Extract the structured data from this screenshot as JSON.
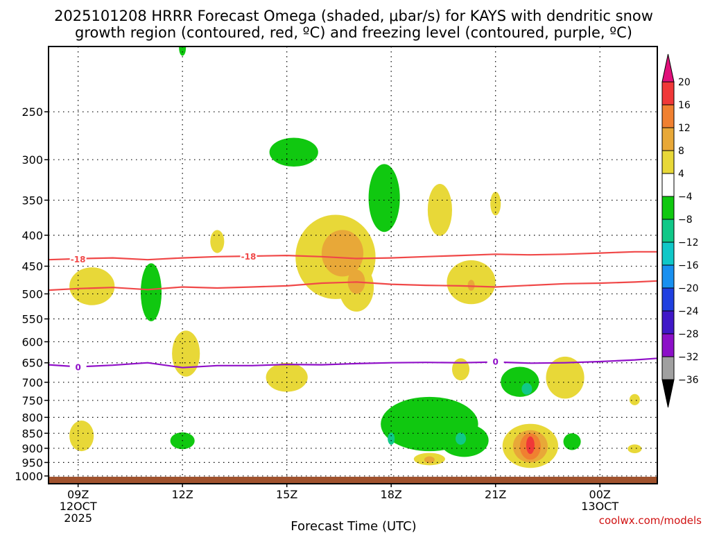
{
  "chart_data": {
    "type": "heatmap",
    "title_lines": [
      "2025101208 HRRR Forecast Omega (shaded, μbar/s) for KAYS with dendritic snow",
      "growth region (contoured, red, ºC) and freezing level (contoured, purple, ºC)"
    ],
    "xlabel": "Forecast Time (UTC)",
    "credit": "coolwx.com/models",
    "x_range_hours": [
      8.15,
      25.65
    ],
    "y_range_hpa": [
      195,
      1030
    ],
    "x_ticks": [
      {
        "hour": 9,
        "lines": [
          "09Z",
          "12OCT",
          "2025"
        ]
      },
      {
        "hour": 12,
        "lines": [
          "12Z"
        ]
      },
      {
        "hour": 15,
        "lines": [
          "15Z"
        ]
      },
      {
        "hour": 18,
        "lines": [
          "18Z"
        ]
      },
      {
        "hour": 21,
        "lines": [
          "21Z"
        ]
      },
      {
        "hour": 24,
        "lines": [
          "00Z",
          "13OCT"
        ]
      }
    ],
    "y_ticks": [
      250,
      300,
      350,
      400,
      450,
      500,
      550,
      600,
      650,
      700,
      750,
      800,
      850,
      900,
      950,
      1000
    ],
    "ground_level_hpa": 1003,
    "colorbar": {
      "labels": [
        "20",
        "16",
        "12",
        "8",
        "4",
        "−4",
        "−8",
        "−12",
        "−16",
        "−20",
        "−24",
        "−28",
        "−32",
        "−36"
      ],
      "colors": [
        "#f03838",
        "#f08030",
        "#e8a838",
        "#e8d838",
        "#ffffff",
        "#10c810",
        "#10c888",
        "#10c8c8",
        "#1890f0",
        "#2040e0",
        "#4018c8",
        "#8c10c8",
        "#a0a0a0"
      ],
      "top_color": "#e0107a",
      "bottom_color": "#000000"
    },
    "contours": [
      {
        "name": "dgz-top-18",
        "label": "-18",
        "color": "#f04848",
        "points": [
          [
            8.15,
            439
          ],
          [
            9.2,
            437
          ],
          [
            10,
            436
          ],
          [
            11,
            439
          ],
          [
            12,
            436
          ],
          [
            13,
            434
          ],
          [
            14,
            433
          ],
          [
            15,
            432
          ],
          [
            16,
            434
          ],
          [
            17,
            437
          ],
          [
            18,
            436
          ],
          [
            19,
            434
          ],
          [
            20,
            432
          ],
          [
            21,
            430
          ],
          [
            22,
            431
          ],
          [
            23,
            430
          ],
          [
            24,
            428
          ],
          [
            25,
            426
          ],
          [
            25.65,
            426
          ]
        ],
        "label_at": [
          [
            9.0,
            439
          ],
          [
            13.9,
            434
          ]
        ]
      },
      {
        "name": "dgz-bottom",
        "label": "",
        "color": "#f04848",
        "points": [
          [
            8.15,
            493
          ],
          [
            9,
            490
          ],
          [
            10,
            488
          ],
          [
            11,
            492
          ],
          [
            12,
            487
          ],
          [
            13,
            489
          ],
          [
            14,
            487
          ],
          [
            15,
            485
          ],
          [
            16,
            480
          ],
          [
            17,
            478
          ],
          [
            18,
            482
          ],
          [
            19,
            484
          ],
          [
            20,
            485
          ],
          [
            21,
            487
          ],
          [
            22,
            484
          ],
          [
            23,
            481
          ],
          [
            24,
            480
          ],
          [
            25,
            478
          ],
          [
            25.65,
            476
          ]
        ],
        "label_at": []
      },
      {
        "name": "freezing-level-0",
        "label": "0",
        "color": "#9010c8",
        "points": [
          [
            8.15,
            655
          ],
          [
            9,
            660
          ],
          [
            10,
            656
          ],
          [
            11,
            650
          ],
          [
            12,
            662
          ],
          [
            13,
            657
          ],
          [
            14,
            657
          ],
          [
            15,
            654
          ],
          [
            16,
            655
          ],
          [
            17,
            652
          ],
          [
            18,
            650
          ],
          [
            19,
            649
          ],
          [
            20,
            650
          ],
          [
            21,
            648
          ],
          [
            22,
            651
          ],
          [
            23,
            650
          ],
          [
            24,
            647
          ],
          [
            25,
            643
          ],
          [
            25.65,
            639
          ]
        ],
        "label_at": [
          [
            9.0,
            662
          ],
          [
            21.0,
            648
          ]
        ]
      }
    ],
    "omega_regions": [
      {
        "value": -6,
        "color": "#10c810",
        "center": [
          12.0,
          196
        ],
        "rx_h": 0.1,
        "ry_hpa": 6
      },
      {
        "value": -6,
        "color": "#10c810",
        "center": [
          15.2,
          292
        ],
        "rx_h": 0.7,
        "ry_hpa": 16
      },
      {
        "value": -6,
        "color": "#10c810",
        "center": [
          17.8,
          350
        ],
        "rx_h": 0.45,
        "ry_hpa": 45
      },
      {
        "value": -6,
        "color": "#10c810",
        "center": [
          11.1,
          500
        ],
        "rx_h": 0.3,
        "ry_hpa": 55
      },
      {
        "value": -6,
        "color": "#10c810",
        "center": [
          21.7,
          700
        ],
        "rx_h": 0.55,
        "ry_hpa": 40
      },
      {
        "value": -6,
        "color": "#10c810",
        "center": [
          19.1,
          825
        ],
        "rx_h": 1.4,
        "ry_hpa": 85
      },
      {
        "value": -6,
        "color": "#10c810",
        "center": [
          20.1,
          875
        ],
        "rx_h": 0.7,
        "ry_hpa": 55
      },
      {
        "value": -6,
        "color": "#10c810",
        "center": [
          12.0,
          875
        ],
        "rx_h": 0.35,
        "ry_hpa": 28
      },
      {
        "value": -6,
        "color": "#10c810",
        "center": [
          23.2,
          878
        ],
        "rx_h": 0.25,
        "ry_hpa": 28
      },
      {
        "value": -10,
        "color": "#10c888",
        "center": [
          21.9,
          718
        ],
        "rx_h": 0.15,
        "ry_hpa": 16
      },
      {
        "value": -10,
        "color": "#10c888",
        "center": [
          18.0,
          868
        ],
        "rx_h": 0.1,
        "ry_hpa": 20
      },
      {
        "value": -10,
        "color": "#10c888",
        "center": [
          20.0,
          868
        ],
        "rx_h": 0.15,
        "ry_hpa": 20
      },
      {
        "value": 6,
        "color": "#e8d838",
        "center": [
          13.0,
          410
        ],
        "rx_h": 0.2,
        "ry_hpa": 18
      },
      {
        "value": 6,
        "color": "#e8d838",
        "center": [
          16.4,
          440
        ],
        "rx_h": 1.15,
        "ry_hpa": 70
      },
      {
        "value": 6,
        "color": "#e8d838",
        "center": [
          17.0,
          490
        ],
        "rx_h": 0.5,
        "ry_hpa": 45
      },
      {
        "value": 6,
        "color": "#e8d838",
        "center": [
          19.4,
          365
        ],
        "rx_h": 0.35,
        "ry_hpa": 36
      },
      {
        "value": 6,
        "color": "#e8d838",
        "center": [
          21.0,
          355
        ],
        "rx_h": 0.15,
        "ry_hpa": 16
      },
      {
        "value": 6,
        "color": "#e8d838",
        "center": [
          20.3,
          480
        ],
        "rx_h": 0.7,
        "ry_hpa": 40
      },
      {
        "value": 6,
        "color": "#e8d838",
        "center": [
          9.4,
          487
        ],
        "rx_h": 0.65,
        "ry_hpa": 35
      },
      {
        "value": 6,
        "color": "#e8d838",
        "center": [
          12.1,
          630
        ],
        "rx_h": 0.4,
        "ry_hpa": 55
      },
      {
        "value": 6,
        "color": "#e8d838",
        "center": [
          15.0,
          688
        ],
        "rx_h": 0.6,
        "ry_hpa": 38
      },
      {
        "value": 6,
        "color": "#e8d838",
        "center": [
          20.0,
          667
        ],
        "rx_h": 0.25,
        "ry_hpa": 28
      },
      {
        "value": 6,
        "color": "#e8d838",
        "center": [
          23.0,
          690
        ],
        "rx_h": 0.55,
        "ry_hpa": 55
      },
      {
        "value": 6,
        "color": "#e8d838",
        "center": [
          25.0,
          748
        ],
        "rx_h": 0.15,
        "ry_hpa": 16
      },
      {
        "value": 6,
        "color": "#e8d838",
        "center": [
          9.1,
          860
        ],
        "rx_h": 0.35,
        "ry_hpa": 50
      },
      {
        "value": 6,
        "color": "#e8d838",
        "center": [
          19.1,
          938
        ],
        "rx_h": 0.45,
        "ry_hpa": 22
      },
      {
        "value": 6,
        "color": "#e8d838",
        "center": [
          22.0,
          895
        ],
        "rx_h": 0.8,
        "ry_hpa": 75
      },
      {
        "value": 6,
        "color": "#e8d838",
        "center": [
          25.0,
          902
        ],
        "rx_h": 0.2,
        "ry_hpa": 15
      },
      {
        "value": 10,
        "color": "#e8a838",
        "center": [
          16.6,
          430
        ],
        "rx_h": 0.6,
        "ry_hpa": 38
      },
      {
        "value": 10,
        "color": "#e8a838",
        "center": [
          17.0,
          478
        ],
        "rx_h": 0.25,
        "ry_hpa": 22
      },
      {
        "value": 10,
        "color": "#e8a838",
        "center": [
          20.3,
          484
        ],
        "rx_h": 0.1,
        "ry_hpa": 10
      },
      {
        "value": 10,
        "color": "#e8a838",
        "center": [
          19.1,
          940
        ],
        "rx_h": 0.15,
        "ry_hpa": 12
      },
      {
        "value": 10,
        "color": "#e8a838",
        "center": [
          22.0,
          895
        ],
        "rx_h": 0.5,
        "ry_hpa": 55
      },
      {
        "value": 14,
        "color": "#f08030",
        "center": [
          22.0,
          895
        ],
        "rx_h": 0.3,
        "ry_hpa": 45
      },
      {
        "value": 18,
        "color": "#f03838",
        "center": [
          22.0,
          890
        ],
        "rx_h": 0.12,
        "ry_hpa": 30
      }
    ]
  }
}
